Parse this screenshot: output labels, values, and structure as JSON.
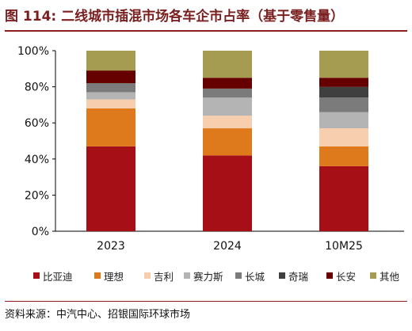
{
  "figure": {
    "title": "图 114: 二线城市插混市场各车企市占率（基于零售量）",
    "source": "资料来源：中汽中心、招银国际环球市场"
  },
  "chart_data": {
    "type": "bar",
    "stacked": true,
    "percent": true,
    "categories": [
      "2023",
      "2024",
      "10M25"
    ],
    "ylim": [
      0,
      100
    ],
    "yticks": [
      "0%",
      "20%",
      "40%",
      "60%",
      "80%",
      "100%"
    ],
    "grid": false,
    "legend_position": "bottom",
    "series": [
      {
        "name": "比亚迪",
        "color": "#a50f15",
        "values": [
          47,
          42,
          36
        ]
      },
      {
        "name": "理想",
        "color": "#df7a1c",
        "values": [
          21,
          15,
          11
        ]
      },
      {
        "name": "吉利",
        "color": "#f8cfae",
        "values": [
          5,
          7,
          10
        ]
      },
      {
        "name": "赛力斯",
        "color": "#b4b4b4",
        "values": [
          4,
          10,
          9
        ]
      },
      {
        "name": "长城",
        "color": "#7b7b7b",
        "values": [
          5,
          5,
          8
        ]
      },
      {
        "name": "奇瑞",
        "color": "#3f3f3f",
        "values": [
          0,
          0,
          6
        ]
      },
      {
        "name": "长安",
        "color": "#660000",
        "values": [
          7,
          6,
          5
        ]
      },
      {
        "name": "其他",
        "color": "#a59c52",
        "values": [
          11,
          15,
          15
        ]
      }
    ]
  }
}
